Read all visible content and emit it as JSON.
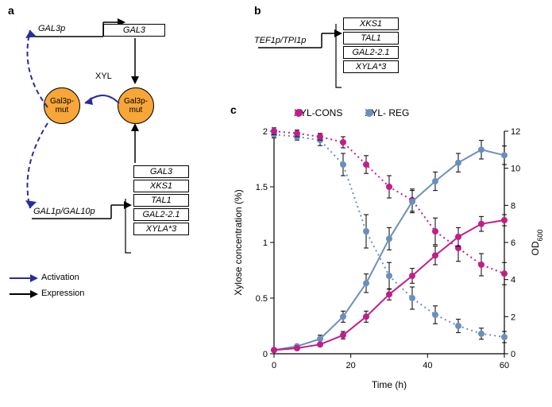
{
  "panelA": {
    "label": "a",
    "gal3p_promoter": "GAL3p",
    "gal3_box": "GAL3",
    "xyl_label": "XYL",
    "circle_label": "Gal3p-mut",
    "gal1_10_promoter": "GAL1p/GAL10p",
    "genes": [
      "GAL3",
      "XKS1",
      "TAL1",
      "GAL2-2.1",
      "XYLA*3"
    ],
    "legend_activation": "Activation",
    "legend_expression": "Expression"
  },
  "panelB": {
    "label": "b",
    "promoter": "TEF1p/TPI1p",
    "genes": [
      "XKS1",
      "TAL1",
      "GAL2-2.1",
      "XYLA*3"
    ]
  },
  "panelC": {
    "label": "c",
    "legend": {
      "cons": "XYL-CONS",
      "reg": "XYL- REG"
    },
    "xlabel": "Time (h)",
    "ylabel_left": "Xylose concentration (%)",
    "ylabel_right": "OD",
    "ylabel_right_sub": "600",
    "xlim": [
      0,
      60
    ],
    "xtick_step": 20,
    "ylim_left": [
      0,
      2
    ],
    "ytick_left_step": 0.5,
    "ylim_right": [
      0,
      12
    ],
    "ytick_right_step": 2,
    "colors": {
      "cons": "#c41c8a",
      "reg": "#6a8fbf",
      "axis": "#000000",
      "bg": "#ffffff"
    },
    "series": {
      "cons_od": {
        "x": [
          0,
          6,
          12,
          18,
          24,
          30,
          36,
          42,
          48,
          54,
          60
        ],
        "y": [
          0.2,
          0.3,
          0.5,
          1.0,
          2.0,
          3.2,
          4.2,
          5.3,
          6.3,
          7.0,
          7.2
        ],
        "err": [
          0.1,
          0.1,
          0.1,
          0.2,
          0.3,
          0.3,
          0.4,
          0.5,
          0.5,
          0.4,
          0.3
        ],
        "style": "solid",
        "axis": "right"
      },
      "reg_od": {
        "x": [
          0,
          6,
          12,
          18,
          24,
          30,
          36,
          42,
          48,
          54,
          60
        ],
        "y": [
          0.2,
          0.4,
          0.8,
          2.0,
          3.8,
          6.2,
          8.2,
          9.3,
          10.3,
          11.0,
          10.7
        ],
        "err": [
          0.1,
          0.1,
          0.2,
          0.3,
          0.5,
          0.6,
          0.6,
          0.5,
          0.5,
          0.5,
          0.5
        ],
        "style": "solid",
        "axis": "right"
      },
      "cons_xyl": {
        "x": [
          0,
          6,
          12,
          18,
          24,
          30,
          36,
          42,
          48,
          54,
          60
        ],
        "y": [
          2.0,
          1.98,
          1.95,
          1.9,
          1.7,
          1.5,
          1.38,
          1.1,
          0.95,
          0.8,
          0.72
        ],
        "err": [
          0.03,
          0.03,
          0.03,
          0.05,
          0.08,
          0.1,
          0.1,
          0.12,
          0.12,
          0.1,
          0.1
        ],
        "style": "dotted",
        "axis": "left"
      },
      "reg_xyl": {
        "x": [
          0,
          6,
          12,
          18,
          24,
          30,
          36,
          42,
          48,
          54,
          60
        ],
        "y": [
          1.97,
          1.95,
          1.92,
          1.7,
          1.1,
          0.7,
          0.5,
          0.35,
          0.25,
          0.18,
          0.15
        ],
        "err": [
          0.03,
          0.03,
          0.05,
          0.1,
          0.15,
          0.12,
          0.1,
          0.08,
          0.06,
          0.05,
          0.05
        ],
        "style": "dotted",
        "axis": "left"
      }
    },
    "marker_size": 3.5,
    "line_width": 2,
    "font_size_axis": 12,
    "font_size_tick": 11
  }
}
